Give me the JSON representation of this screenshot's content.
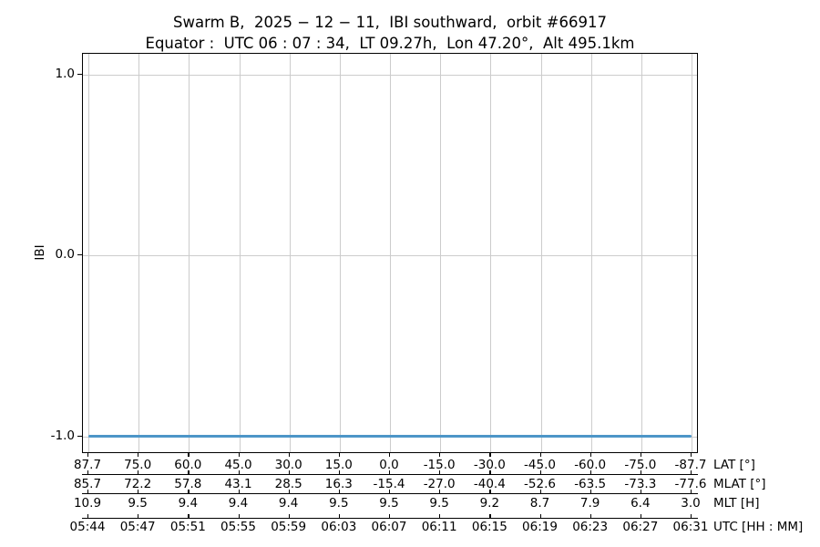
{
  "title": {
    "line1": "Swarm B,  2025 − 12 − 11,  IBI southward,  orbit #66917",
    "line2": "Equator :  UTC 06 : 07 : 34,  LT 09.27h,  Lon 47.20°,  Alt 495.1km"
  },
  "chart_data": {
    "type": "line",
    "title": "Swarm B, 2025-12-11, IBI southward, orbit #66917",
    "subtitle": "Equator: UTC 06:07:34, LT 09.27h, Lon 47.20°, Alt 495.1km",
    "ylabel": "IBI",
    "ylim": [
      -1.1,
      1.12
    ],
    "grid": true,
    "grid_color": "#cccccc",
    "spine_color": "#000000",
    "yticks": [
      {
        "value": 1.0,
        "label": "1.0"
      },
      {
        "value": 0.0,
        "label": "0.0"
      },
      {
        "value": -1.0,
        "label": "-1.0"
      }
    ],
    "series": [
      {
        "name": "IBI southward",
        "color": "#4d96c8",
        "shape": "constant",
        "constant_value": -1.0,
        "x": [
          "05:44",
          "05:47",
          "05:51",
          "05:55",
          "05:59",
          "06:03",
          "06:07",
          "06:11",
          "06:15",
          "06:19",
          "06:23",
          "06:27",
          "06:31"
        ],
        "values": [
          -1.0,
          -1.0,
          -1.0,
          -1.0,
          -1.0,
          -1.0,
          -1.0,
          -1.0,
          -1.0,
          -1.0,
          -1.0,
          -1.0,
          -1.0
        ]
      }
    ],
    "x_axis_rows": [
      {
        "label": "LAT [°]",
        "values": [
          "87.7",
          "75.0",
          "60.0",
          "45.0",
          "30.0",
          "15.0",
          "0.0",
          "-15.0",
          "-30.0",
          "-45.0",
          "-60.0",
          "-75.0",
          "-87.7"
        ]
      },
      {
        "label": "MLAT [°]",
        "values": [
          "85.7",
          "72.2",
          "57.8",
          "43.1",
          "28.5",
          "16.3",
          "-15.4",
          "-27.0",
          "-40.4",
          "-52.6",
          "-63.5",
          "-73.3",
          "-77.6"
        ]
      },
      {
        "label": "MLT [H]",
        "values": [
          "10.9",
          "9.5",
          "9.4",
          "9.4",
          "9.4",
          "9.5",
          "9.5",
          "9.5",
          "9.2",
          "8.7",
          "7.9",
          "6.4",
          "3.0"
        ]
      },
      {
        "label": "UTC [HH : MM]",
        "values": [
          "05:44",
          "05:47",
          "05:51",
          "05:55",
          "05:59",
          "06:03",
          "06:07",
          "06:11",
          "06:15",
          "06:19",
          "06:23",
          "06:27",
          "06:31"
        ]
      }
    ]
  }
}
